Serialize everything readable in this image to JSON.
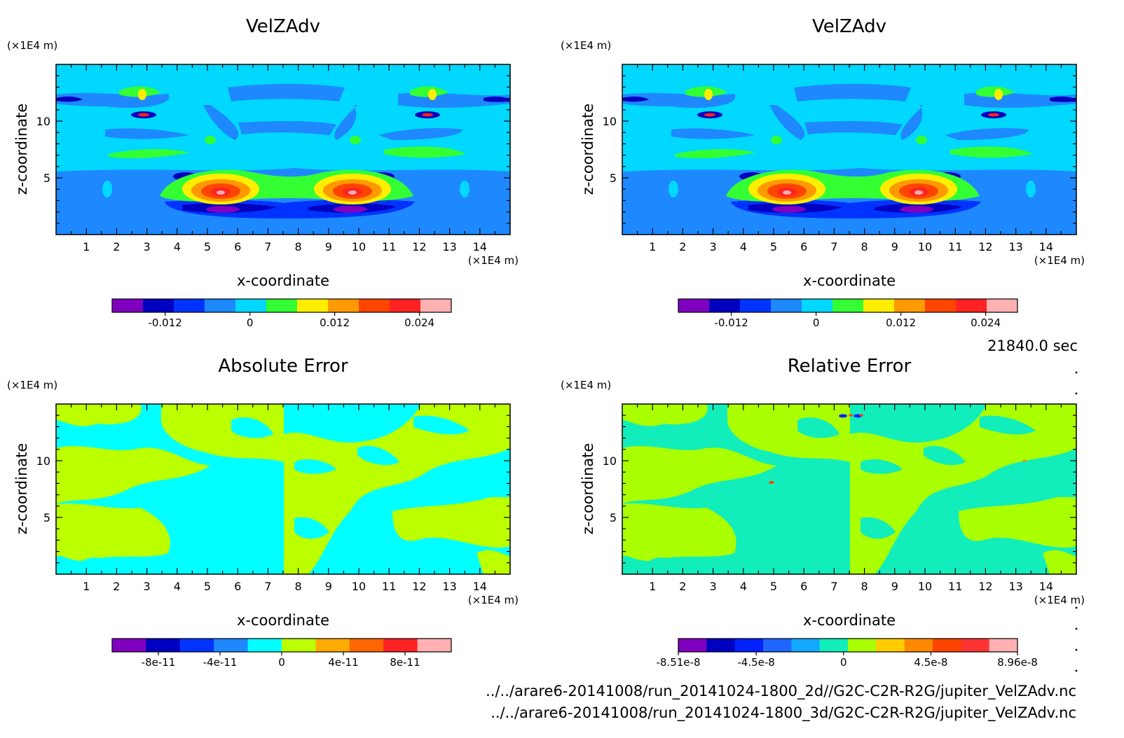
{
  "footer": {
    "time_label": "21840.0 sec",
    "file_2d": "../../arare6-20141008/run_20141024-1800_2d//G2C-C2R-R2G/jupiter_VelZAdv.nc",
    "file_3d": "../../arare6-20141008/run_20141024-1800_3d/G2C-C2R-R2G/jupiter_VelZAdv.nc"
  },
  "chart_data": [
    {
      "type": "heatmap",
      "title": "VelZAdv",
      "xlabel": "x-coordinate",
      "ylabel": "z-coordinate",
      "x_unit": "(×1E4 m)",
      "y_unit": "(×1E4 m)",
      "xlim": [
        0,
        15
      ],
      "ylim": [
        0,
        15
      ],
      "xticks": [
        1,
        2,
        3,
        4,
        5,
        6,
        7,
        8,
        9,
        10,
        11,
        12,
        13,
        14
      ],
      "yticks": [
        5,
        10
      ],
      "colorbar": {
        "colors": [
          "#7f00bf",
          "#0000c0",
          "#0033ff",
          "#1e88ff",
          "#00d8ff",
          "#33ff33",
          "#ffee00",
          "#ff9900",
          "#ff4400",
          "#ff2222",
          "#ffb0b0"
        ],
        "tick_labels": [
          "-0.012",
          "0",
          "0.012",
          "0.024"
        ],
        "tick_values": [
          -0.012,
          0,
          0.012,
          0.024
        ],
        "range": [
          -0.0195,
          0.0285
        ]
      }
    },
    {
      "type": "heatmap",
      "title": "VelZAdv",
      "xlabel": "x-coordinate",
      "ylabel": "z-coordinate",
      "x_unit": "(×1E4 m)",
      "y_unit": "(×1E4 m)",
      "xlim": [
        0,
        15
      ],
      "ylim": [
        0,
        15
      ],
      "xticks": [
        1,
        2,
        3,
        4,
        5,
        6,
        7,
        8,
        9,
        10,
        11,
        12,
        13,
        14
      ],
      "yticks": [
        5,
        10
      ],
      "colorbar": {
        "colors": [
          "#7f00bf",
          "#0000c0",
          "#0033ff",
          "#1e88ff",
          "#00d8ff",
          "#33ff33",
          "#ffee00",
          "#ff9900",
          "#ff4400",
          "#ff2222",
          "#ffb0b0"
        ],
        "tick_labels": [
          "-0.012",
          "0",
          "0.012",
          "0.024"
        ],
        "tick_values": [
          -0.012,
          0,
          0.012,
          0.024
        ],
        "range": [
          -0.0195,
          0.0285
        ]
      }
    },
    {
      "type": "heatmap",
      "title": "Absolute Error",
      "xlabel": "x-coordinate",
      "ylabel": "z-coordinate",
      "x_unit": "(×1E4 m)",
      "y_unit": "(×1E4 m)",
      "xlim": [
        0,
        15
      ],
      "ylim": [
        0,
        15
      ],
      "xticks": [
        1,
        2,
        3,
        4,
        5,
        6,
        7,
        8,
        9,
        10,
        11,
        12,
        13,
        14
      ],
      "yticks": [
        5,
        10
      ],
      "colorbar": {
        "colors": [
          "#7f00bf",
          "#0000c0",
          "#0033ff",
          "#1e88ff",
          "#00ffff",
          "#bbff00",
          "#ffaa00",
          "#ff6600",
          "#ff2222",
          "#ffb0b0"
        ],
        "tick_labels": [
          "-8e-11",
          "-4e-11",
          "0",
          "4e-11",
          "8e-11"
        ],
        "tick_values": [
          -8e-11,
          -4e-11,
          0,
          4e-11,
          8e-11
        ],
        "range": [
          -1.1e-10,
          1.1e-10
        ]
      }
    },
    {
      "type": "heatmap",
      "title": "Relative Error",
      "xlabel": "x-coordinate",
      "ylabel": "z-coordinate",
      "x_unit": "(×1E4 m)",
      "y_unit": "(×1E4 m)",
      "xlim": [
        0,
        15
      ],
      "ylim": [
        0,
        15
      ],
      "xticks": [
        1,
        2,
        3,
        4,
        5,
        6,
        7,
        8,
        9,
        10,
        11,
        12,
        13,
        14
      ],
      "yticks": [
        5,
        10
      ],
      "colorbar": {
        "colors": [
          "#7f00bf",
          "#0000c0",
          "#0022ff",
          "#1e66ff",
          "#11aaff",
          "#11eebb",
          "#aaff00",
          "#ffcc00",
          "#ff8800",
          "#ff4400",
          "#ff3333",
          "#ffb0b0"
        ],
        "tick_labels": [
          "-8.51e-8",
          "-4.5e-8",
          "0",
          "4.5e-8",
          "8.96e-8"
        ],
        "tick_values": [
          -8.51e-08,
          -4.5e-08,
          0,
          4.5e-08,
          8.96e-08
        ],
        "range": [
          -8.51e-08,
          8.96e-08
        ]
      }
    }
  ]
}
